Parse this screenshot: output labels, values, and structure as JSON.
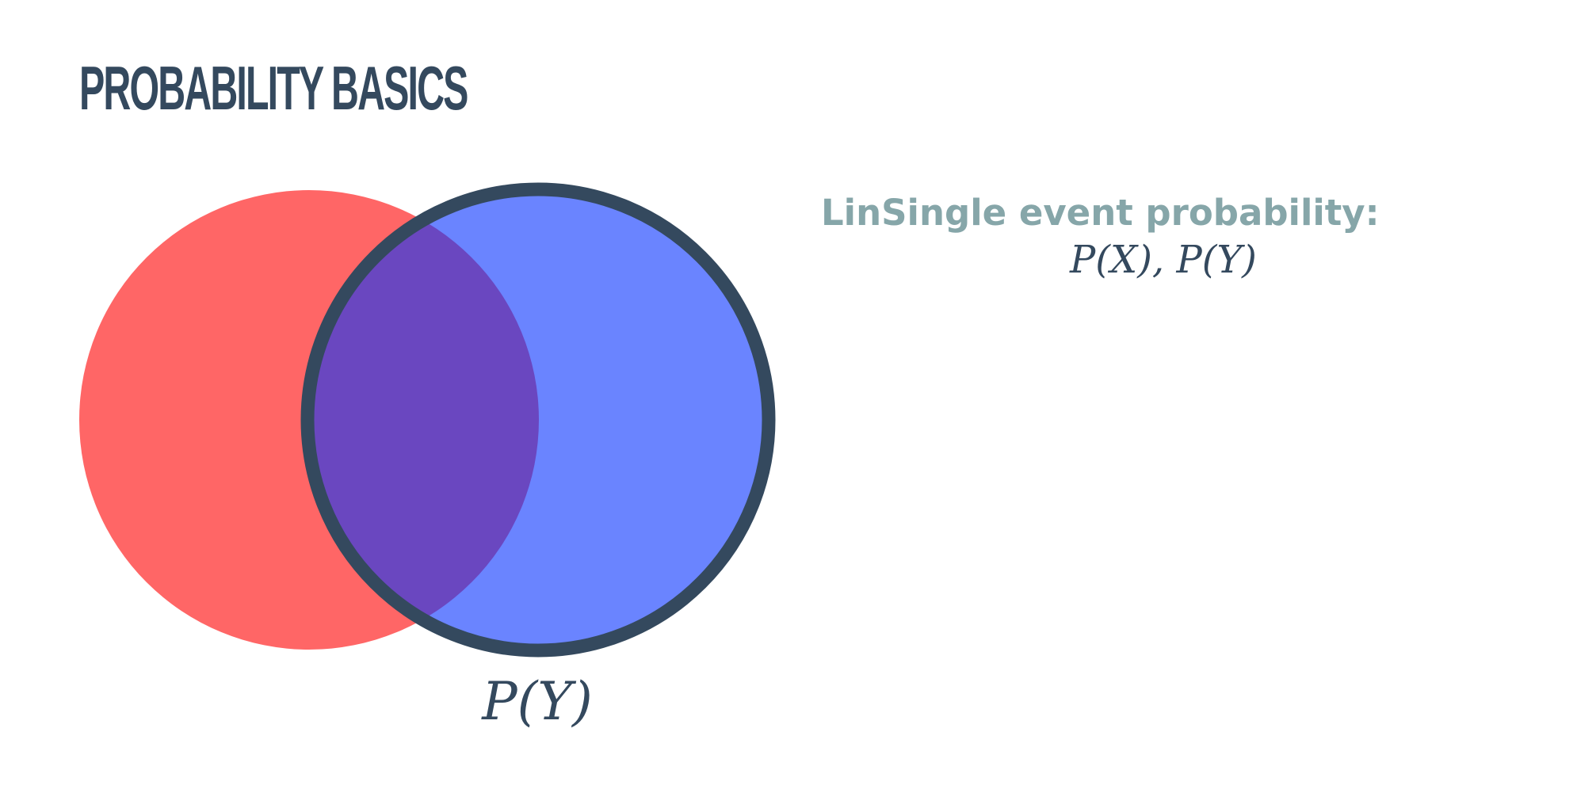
{
  "title": "PROBABILITY BASICS",
  "diagram": {
    "circle_x_color": "#ff6666",
    "circle_y_color": "#6a84ff",
    "overlap_color": "#6a47c0",
    "outline_color": "#34495e",
    "label": "P(Y)"
  },
  "side": {
    "heading": "LinSingle event probability:",
    "formula": "P(X), P(Y)",
    "heading_color": "#86a6a9"
  }
}
